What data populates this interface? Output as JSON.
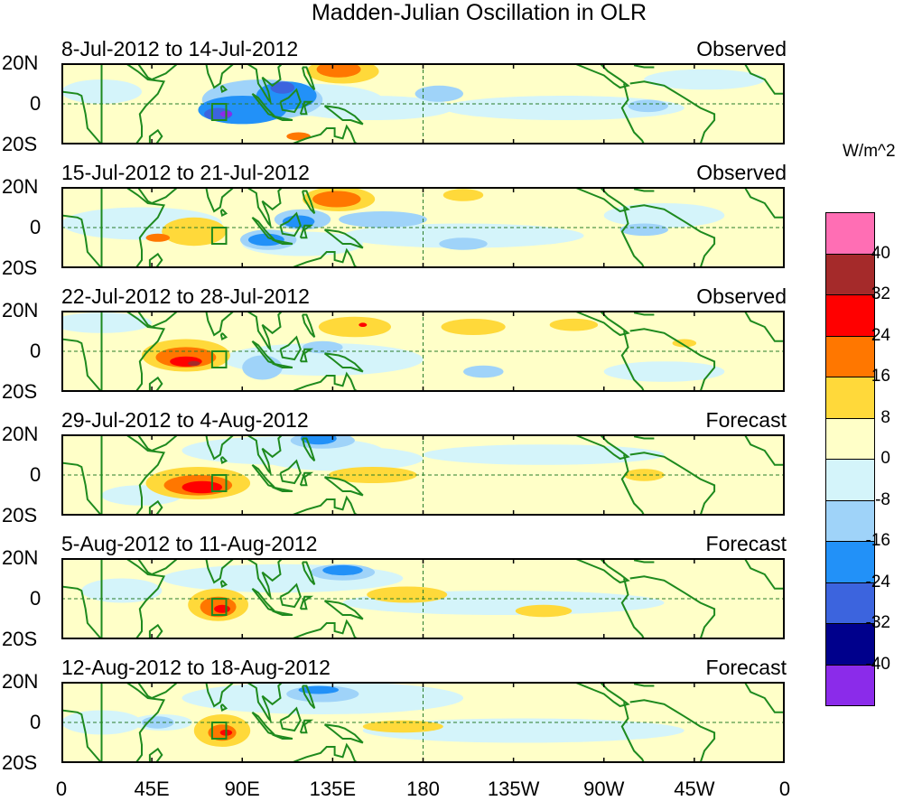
{
  "chart_data": {
    "type": "heatmap",
    "title": "Madden-Julian Oscillation in OLR",
    "units": "W/m^2",
    "x_ticks": [
      "0",
      "45E",
      "90E",
      "135E",
      "180",
      "135W",
      "90W",
      "45W",
      "0"
    ],
    "y_ticks": [
      "20N",
      "0",
      "20S"
    ],
    "ylim": [
      -20,
      20
    ],
    "colorbar": {
      "levels": [
        "40",
        "32",
        "24",
        "16",
        "8",
        "0",
        "-8",
        "-16",
        "-24",
        "-32",
        "-40"
      ],
      "colors": [
        "#ff6eb4",
        "#a52a2a",
        "#ff0000",
        "#ff7700",
        "#ffd93a",
        "#ffffc8",
        "#d4f4fa",
        "#9fd3f9",
        "#2291f8",
        "#3c64de",
        "#00008c",
        "#8b2bea"
      ]
    },
    "panels": [
      {
        "period": "8-Jul-2012 to 14-Jul-2012",
        "kind": "Observed"
      },
      {
        "period": "15-Jul-2012 to 21-Jul-2012",
        "kind": "Observed"
      },
      {
        "period": "22-Jul-2012 to 28-Jul-2012",
        "kind": "Observed"
      },
      {
        "period": "29-Jul-2012 to 4-Aug-2012",
        "kind": "Forecast"
      },
      {
        "period": "5-Aug-2012 to 11-Aug-2012",
        "kind": "Forecast"
      },
      {
        "period": "12-Aug-2012 to 18-Aug-2012",
        "kind": "Forecast"
      }
    ]
  }
}
